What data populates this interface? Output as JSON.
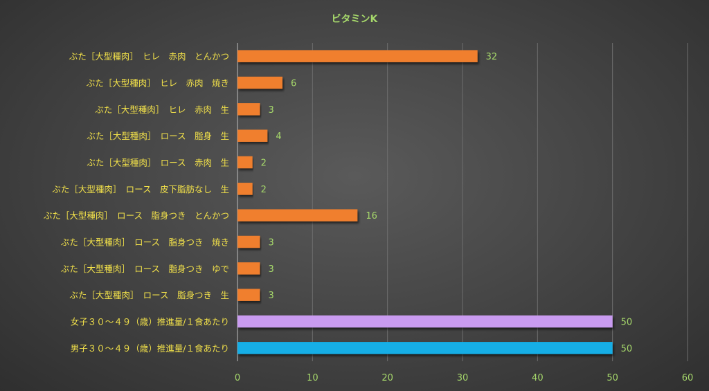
{
  "chart_data": {
    "type": "bar",
    "orientation": "horizontal",
    "title": "ビタミンK",
    "categories": [
      "ぶた［大型種肉］　ヒレ　赤肉　とんかつ",
      "ぶた［大型種肉］　ヒレ　赤肉　焼き",
      "ぶた［大型種肉］　ヒレ　赤肉　生",
      "ぶた［大型種肉］　ロース　脂身　生",
      "ぶた［大型種肉］　ロース　赤肉　生",
      "ぶた［大型種肉］　ロース　皮下脂肪なし　生",
      "ぶた［大型種肉］　ロース　脂身つき　とんかつ",
      "ぶた［大型種肉］　ロース　脂身つき　焼き",
      "ぶた［大型種肉］　ロース　脂身つき　ゆで",
      "ぶた［大型種肉］　ロース　脂身つき　生",
      "女子３０～４９（歳）推進量/１食あたり",
      "男子３０～４９（歳）推進量/１食あたり"
    ],
    "values": [
      32,
      6,
      3,
      4,
      2,
      2,
      16,
      3,
      3,
      3,
      50,
      50
    ],
    "bar_colors": [
      "#f07f2e",
      "#f07f2e",
      "#f07f2e",
      "#f07f2e",
      "#f07f2e",
      "#f07f2e",
      "#f07f2e",
      "#f07f2e",
      "#f07f2e",
      "#f07f2e",
      "#c99bf0",
      "#14aee6"
    ],
    "data_labels": [
      "32",
      "6",
      "3",
      "4",
      "2",
      "2",
      "16",
      "3",
      "3",
      "3",
      "50",
      "50"
    ],
    "x_ticks": [
      "0",
      "10",
      "20",
      "30",
      "40",
      "50",
      "60"
    ],
    "xlim": [
      0,
      60
    ],
    "grid": true,
    "legend": "none",
    "colors": {
      "title": "#a6d86b",
      "category_label": "#f2e14a",
      "data_label": "#a6d86b",
      "tick_label": "#a6d86b",
      "grid": "#6e6e6e"
    }
  }
}
